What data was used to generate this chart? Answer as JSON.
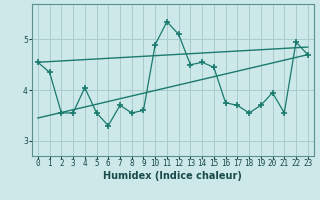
{
  "xlabel": "Humidex (Indice chaleur)",
  "bg_color": "#cce8e8",
  "grid_color": "#aacccc",
  "line_color": "#1a7a6e",
  "xlim": [
    -0.5,
    23.5
  ],
  "ylim": [
    2.7,
    5.7
  ],
  "yticks": [
    3,
    4,
    5
  ],
  "xticks": [
    0,
    1,
    2,
    3,
    4,
    5,
    6,
    7,
    8,
    9,
    10,
    11,
    12,
    13,
    14,
    15,
    16,
    17,
    18,
    19,
    20,
    21,
    22,
    23
  ],
  "series1_x": [
    0,
    1,
    2,
    3,
    4,
    5,
    6,
    7,
    8,
    9,
    10,
    11,
    12,
    13,
    14,
    15,
    16,
    17,
    18,
    19,
    20,
    21,
    22,
    23
  ],
  "series1_y": [
    4.55,
    4.35,
    3.55,
    3.55,
    4.05,
    3.55,
    3.3,
    3.7,
    3.55,
    3.6,
    4.9,
    5.35,
    5.1,
    4.5,
    4.55,
    4.45,
    3.75,
    3.7,
    3.55,
    3.7,
    3.95,
    3.55,
    4.95,
    4.7
  ],
  "trend1_x": [
    0,
    23
  ],
  "trend1_y": [
    3.45,
    4.7
  ],
  "trend2_x": [
    0,
    23
  ],
  "trend2_y": [
    4.55,
    4.85
  ]
}
